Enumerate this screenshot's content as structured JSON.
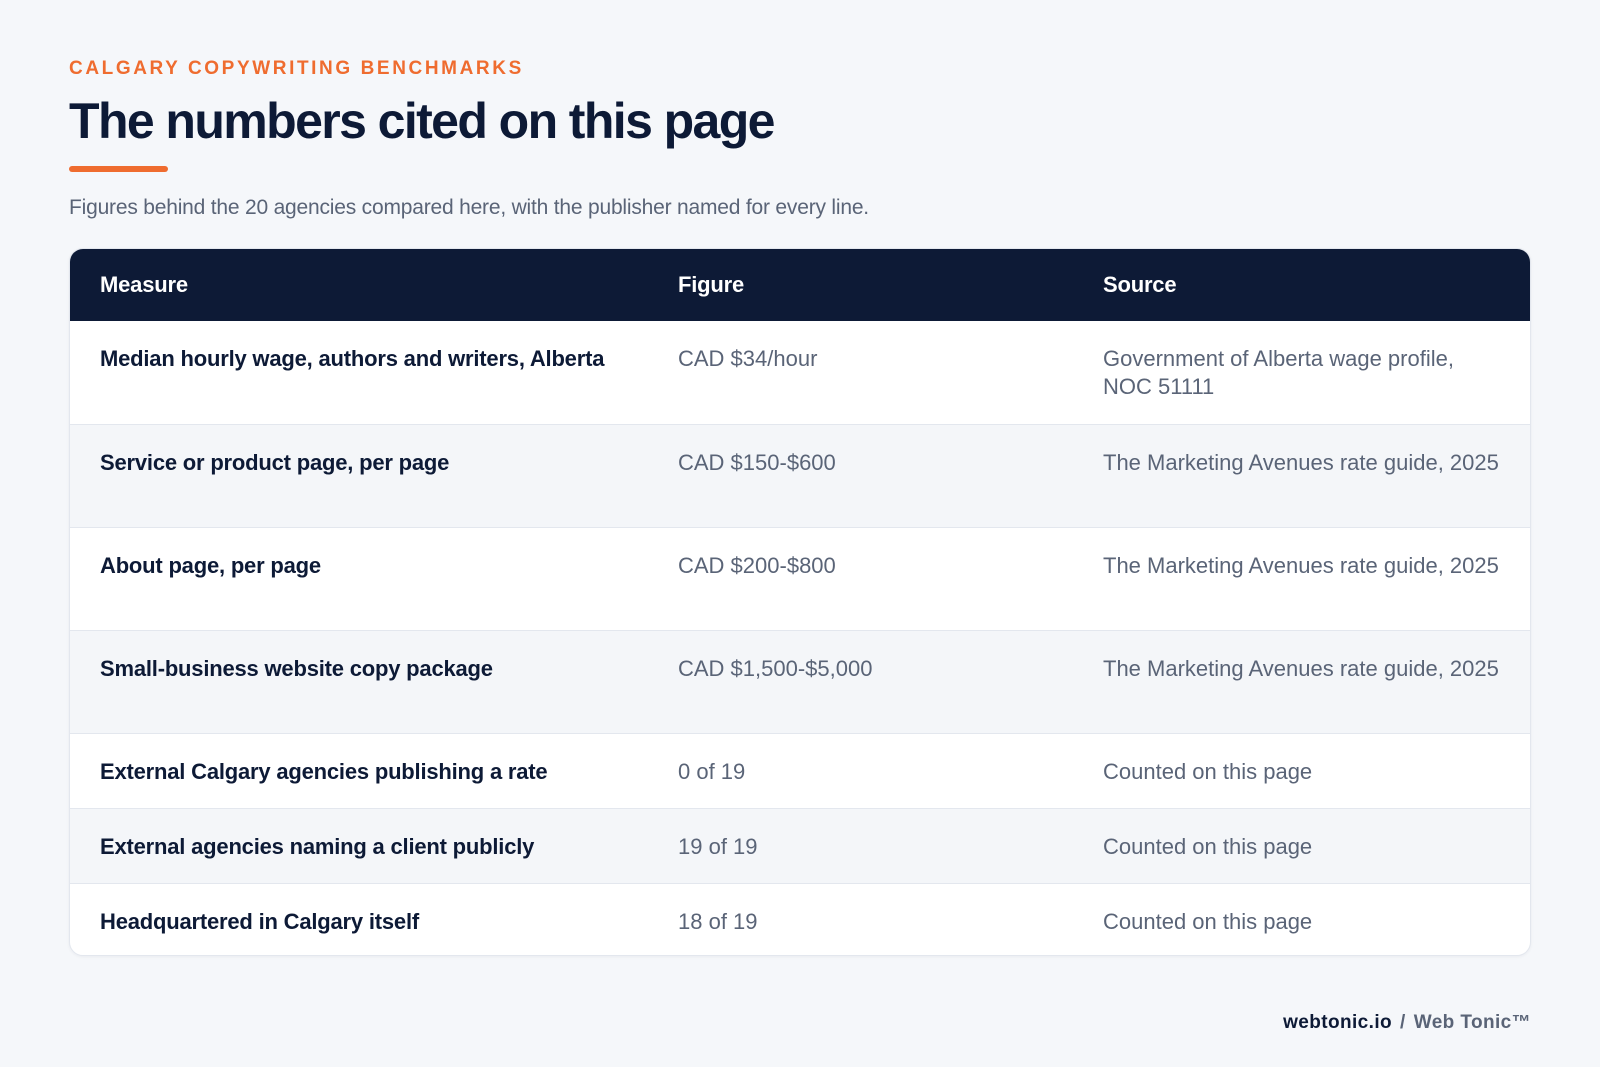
{
  "header": {
    "eyebrow": "CALGARY COPYWRITING BENCHMARKS",
    "title": "The numbers cited on this page",
    "subtitle": "Figures behind the 20 agencies compared here, with the publisher named for every line."
  },
  "table": {
    "columns": [
      "Measure",
      "Figure",
      "Source"
    ],
    "rows": [
      {
        "measure": "Median hourly wage, authors and writers, Alberta",
        "figure": "CAD $34/hour",
        "source": "Government of Alberta wage profile, NOC 51111"
      },
      {
        "measure": "Service or product page, per page",
        "figure": "CAD $150-$600",
        "source": "The Marketing Avenues rate guide, 2025"
      },
      {
        "measure": "About page, per page",
        "figure": "CAD $200-$800",
        "source": "The Marketing Avenues rate guide, 2025"
      },
      {
        "measure": "Small-business website copy package",
        "figure": "CAD $1,500-$5,000",
        "source": "The Marketing Avenues rate guide, 2025"
      },
      {
        "measure": "External Calgary agencies publishing a rate",
        "figure": "0 of 19",
        "source": "Counted on this page"
      },
      {
        "measure": "External agencies naming a client publicly",
        "figure": "19 of 19",
        "source": "Counted on this page"
      },
      {
        "measure": "Headquartered in Calgary itself",
        "figure": "18 of 19",
        "source": "Counted on this page"
      }
    ]
  },
  "footer": {
    "domain": "webtonic.io",
    "separator": "/",
    "brand": "Web Tonic™"
  },
  "colors": {
    "accent": "#ef6c2f",
    "navy": "#0d1a36",
    "muted_text": "#5a6477"
  }
}
